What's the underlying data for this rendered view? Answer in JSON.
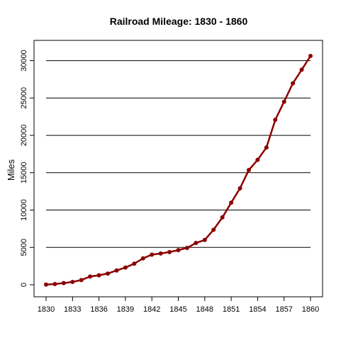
{
  "chart_data": {
    "type": "line",
    "title": "Railroad Mileage: 1830 - 1860",
    "xlabel": "",
    "ylabel": "Miles",
    "xlim": [
      1830,
      1860
    ],
    "ylim": [
      0,
      30626
    ],
    "x_ticks": [
      "1830",
      "1833",
      "1836",
      "1839",
      "1842",
      "1845",
      "1848",
      "1851",
      "1854",
      "1857",
      "1860"
    ],
    "y_ticks": [
      "0",
      "5000",
      "10000",
      "15000",
      "20000",
      "25000",
      "30000"
    ],
    "gridlines_y": [
      5000,
      10000,
      15000,
      20000,
      25000,
      30000
    ],
    "line_color": "#8b0000",
    "marker_color": "#8b0000",
    "grid_color": "#000000",
    "x": [
      1830,
      1831,
      1832,
      1833,
      1834,
      1835,
      1836,
      1837,
      1838,
      1839,
      1840,
      1841,
      1842,
      1843,
      1844,
      1845,
      1846,
      1847,
      1848,
      1849,
      1850,
      1851,
      1852,
      1853,
      1854,
      1855,
      1856,
      1857,
      1858,
      1859,
      1860
    ],
    "values": [
      23,
      95,
      229,
      380,
      633,
      1098,
      1273,
      1497,
      1913,
      2302,
      2818,
      3535,
      4026,
      4185,
      4377,
      4633,
      4930,
      5598,
      5996,
      7365,
      9021,
      10982,
      12908,
      15360,
      16720,
      18374,
      22076,
      24503,
      26968,
      28789,
      30626
    ]
  }
}
